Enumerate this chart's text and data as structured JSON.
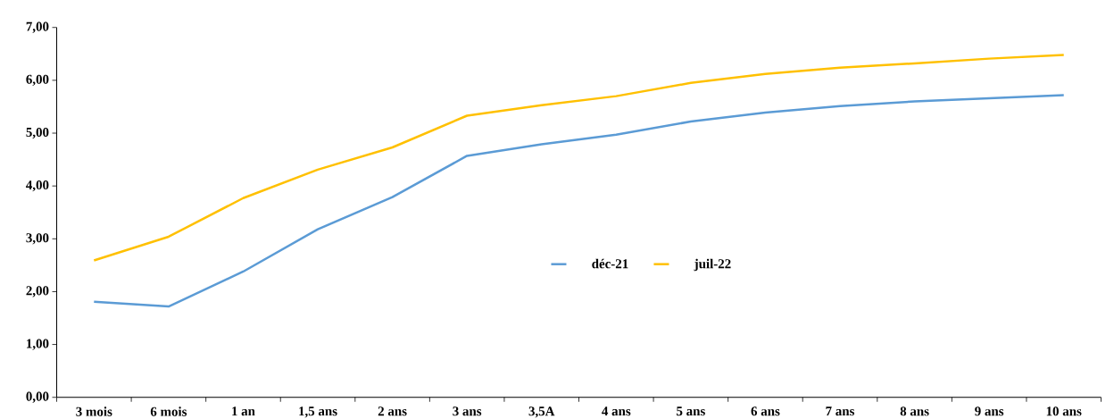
{
  "chart_data": {
    "type": "line",
    "categories": [
      "3 mois",
      "6 mois",
      "1 an",
      "1,5 ans",
      "2 ans",
      "3 ans",
      "3,5A",
      "4 ans",
      "5 ans",
      "6 ans",
      "7 ans",
      "8 ans",
      "9 ans",
      "10 ans"
    ],
    "series": [
      {
        "name": "déc-21",
        "color": "#5b9bd5",
        "values": [
          1.81,
          1.72,
          2.38,
          3.18,
          3.79,
          4.57,
          4.79,
          4.97,
          5.22,
          5.39,
          5.51,
          5.6,
          5.66,
          5.72
        ]
      },
      {
        "name": "juil-22",
        "color": "#ffc000",
        "values": [
          2.59,
          3.04,
          3.77,
          4.31,
          4.73,
          5.33,
          5.53,
          5.7,
          5.95,
          6.12,
          6.24,
          6.32,
          6.41,
          6.48
        ]
      }
    ],
    "ylim": [
      0,
      7
    ],
    "yticks": [
      {
        "value": 0,
        "label": "0,00"
      },
      {
        "value": 1,
        "label": "1,00"
      },
      {
        "value": 2,
        "label": "2,00"
      },
      {
        "value": 3,
        "label": "3,00"
      },
      {
        "value": 4,
        "label": "4,00"
      },
      {
        "value": 5,
        "label": "5,00"
      },
      {
        "value": 6,
        "label": "6,00"
      },
      {
        "value": 7,
        "label": "7,00"
      }
    ],
    "grid": false,
    "legend": "center",
    "marker": "none",
    "line_style": "solid"
  }
}
